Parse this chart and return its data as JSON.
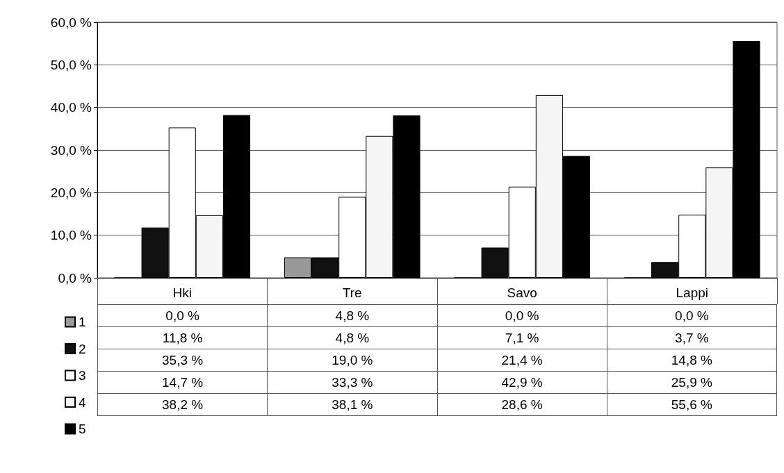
{
  "chart_data": {
    "type": "bar",
    "categories": [
      "Hki",
      "Tre",
      "Savo",
      "Lappi"
    ],
    "series": [
      {
        "name": "1",
        "color": "#999999",
        "values": [
          0.0,
          4.8,
          0.0,
          0.0
        ],
        "value_labels": [
          "0,0 %",
          "4,8 %",
          "0,0 %",
          "0,0 %"
        ]
      },
      {
        "name": "2",
        "color": "#111111",
        "values": [
          11.8,
          4.8,
          7.1,
          3.7
        ],
        "value_labels": [
          "11,8 %",
          "4,8 %",
          "7,1 %",
          "3,7 %"
        ]
      },
      {
        "name": "3",
        "color": "#ffffff",
        "values": [
          35.3,
          19.0,
          21.4,
          14.8
        ],
        "value_labels": [
          "35,3 %",
          "19,0 %",
          "21,4 %",
          "14,8 %"
        ]
      },
      {
        "name": "4",
        "color": "#f5f5f5",
        "values": [
          14.7,
          33.3,
          42.9,
          25.9
        ],
        "value_labels": [
          "14,7 %",
          "33,3 %",
          "42,9 %",
          "25,9 %"
        ]
      },
      {
        "name": "5",
        "color": "#000000",
        "values": [
          38.2,
          38.1,
          28.6,
          55.6
        ],
        "value_labels": [
          "38,2 %",
          "38,1 %",
          "28,6 %",
          "55,6 %"
        ]
      }
    ],
    "ylim": [
      0,
      60
    ],
    "yticks": [
      {
        "value": 0,
        "label": "0,0 %"
      },
      {
        "value": 10,
        "label": "10,0 %"
      },
      {
        "value": 20,
        "label": "20,0 %"
      },
      {
        "value": 30,
        "label": "30,0 %"
      },
      {
        "value": 40,
        "label": "40,0 %"
      },
      {
        "value": 50,
        "label": "50,0 %"
      },
      {
        "value": 60,
        "label": "60,0 %"
      }
    ],
    "grid": "y",
    "legend": "bottom left"
  }
}
